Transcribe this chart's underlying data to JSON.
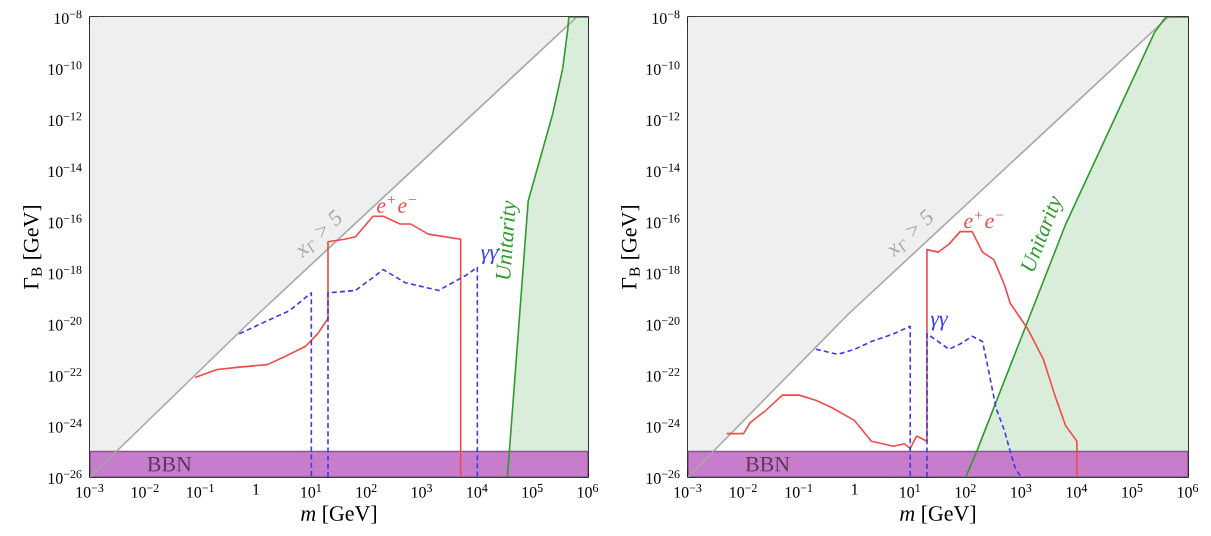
{
  "chart_data": [
    {
      "type": "line",
      "xlabel": "*m* [GeV]",
      "ylabel": "Γ$_{B}$ [GeV]",
      "log": "xy",
      "xlim": [
        0.001,
        1000000
      ],
      "ylim": [
        1e-26,
        1e-08
      ],
      "xticks": [
        {
          "value": 0.001,
          "label": "10$^{−3}$"
        },
        {
          "value": 0.01,
          "label": "10$^{−2}$"
        },
        {
          "value": 0.1,
          "label": "10$^{−1}$"
        },
        1,
        {
          "value": 10,
          "label": "10$^{1}$"
        },
        {
          "value": 100,
          "label": "10$^{2}$"
        },
        {
          "value": 1000,
          "label": "10$^{3}$"
        },
        {
          "value": 10000,
          "label": "10$^{4}$"
        },
        {
          "value": 100000,
          "label": "10$^{5}$"
        },
        {
          "value": 1000000,
          "label": "10$^{6}$"
        }
      ],
      "yticks": [
        {
          "value": 1e-26,
          "label": "10$^{−26}$"
        },
        {
          "value": 1e-24,
          "label": "10$^{−24}$"
        },
        {
          "value": 1e-22,
          "label": "10$^{−22}$"
        },
        {
          "value": 1e-20,
          "label": "10$^{−20}$"
        },
        {
          "value": 1e-18,
          "label": "10$^{−18}$"
        },
        {
          "value": 1e-16,
          "label": "10$^{−16}$"
        },
        {
          "value": 1e-14,
          "label": "10$^{−14}$"
        },
        {
          "value": 1e-12,
          "label": "10$^{−12}$"
        },
        {
          "value": 1e-10,
          "label": "10$^{−10}$"
        },
        {
          "value": 1e-08,
          "label": "10$^{−8}$"
        }
      ],
      "series": [
        {
          "name": "*x*$_{Γ}$ > 5",
          "color": "#a6a6a6",
          "x": [
            0.001,
            1,
            630000
          ],
          "values": [
            1e-26,
            2e-20,
            1e-08
          ],
          "lower": [
            1e-26,
            2e-20,
            1e-08
          ],
          "upper": [
            1e-08,
            1e-08,
            1e-08
          ]
        },
        {
          "name": "Unitarity",
          "color": "#2f9a2f",
          "x": [
            35000,
            83000,
            230000,
            350000,
            430000,
            450000,
            1000000
          ],
          "values": [
            1e-26,
            6.3e-16,
            1.6e-12,
            1e-10,
            3.2e-09,
            1e-08,
            1e-08
          ],
          "lower": [
            1e-26,
            1e-26,
            1e-26,
            1e-26,
            1e-26,
            1e-26,
            1e-26
          ],
          "upper": [
            1e-26,
            6.3e-16,
            1.6e-12,
            1e-10,
            3.2e-09,
            1e-08,
            1e-08
          ]
        },
        {
          "name": "e$^{+}$e$^{−}$",
          "color": "#f04a4a",
          "x": [
            0.079,
            0.2,
            0.5,
            1.6,
            3.2,
            7.9,
            13,
            20,
            20,
            40,
            63,
            130,
            200,
            400,
            630,
            1300,
            5000,
            5000
          ],
          "values": [
            7.9e-23,
            1.6e-22,
            2e-22,
            2.5e-22,
            5e-22,
            1.3e-21,
            4e-21,
            1.6e-20,
            1.6e-17,
            2e-17,
            2.5e-17,
            1.6e-16,
            1.6e-16,
            7.9e-17,
            7.9e-17,
            3.2e-17,
            2e-17,
            1e-26
          ]
        },
        {
          "name": "γγ",
          "color": "#3a3af0",
          "line_style": "dashed",
          "x": [
            0.5,
            1.6,
            4.0,
            10,
            10,
            null,
            20,
            20,
            63,
            200,
            500,
            2000,
            6300,
            10000,
            10000
          ],
          "values": [
            4e-21,
            1.3e-20,
            3.2e-20,
            1.6e-19,
            1e-26,
            null,
            1e-26,
            1.6e-19,
            2e-19,
            1.3e-18,
            4e-19,
            2e-19,
            7.9e-19,
            1.6e-18,
            1e-26
          ]
        }
      ],
      "bands": [
        {
          "axis": "y",
          "from": 1e-26,
          "to": 1e-25,
          "label": "BBN",
          "color": "#c77dcb"
        }
      ]
    },
    {
      "type": "line",
      "xlabel": "*m* [GeV]",
      "ylabel": "Γ$_{B}$ [GeV]",
      "log": "xy",
      "xlim": [
        0.001,
        1000000
      ],
      "ylim": [
        1e-26,
        1e-08
      ],
      "xticks": [
        {
          "value": 0.001,
          "label": "10$^{−3}$"
        },
        {
          "value": 0.01,
          "label": "10$^{−2}$"
        },
        {
          "value": 0.1,
          "label": "10$^{−1}$"
        },
        1,
        {
          "value": 10,
          "label": "10$^{1}$"
        },
        {
          "value": 100,
          "label": "10$^{2}$"
        },
        {
          "value": 1000,
          "label": "10$^{3}$"
        },
        {
          "value": 10000,
          "label": "10$^{4}$"
        },
        {
          "value": 100000,
          "label": "10$^{5}$"
        },
        {
          "value": 1000000,
          "label": "10$^{6}$"
        }
      ],
      "yticks": [
        {
          "value": 1e-26,
          "label": "10$^{−26}$"
        },
        {
          "value": 1e-24,
          "label": "10$^{−24}$"
        },
        {
          "value": 1e-22,
          "label": "10$^{−22}$"
        },
        {
          "value": 1e-20,
          "label": "10$^{−20}$"
        },
        {
          "value": 1e-18,
          "label": "10$^{−18}$"
        },
        {
          "value": 1e-16,
          "label": "10$^{−16}$"
        },
        {
          "value": 1e-14,
          "label": "10$^{−14}$"
        },
        {
          "value": 1e-12,
          "label": "10$^{−12}$"
        },
        {
          "value": 1e-10,
          "label": "10$^{−10}$"
        },
        {
          "value": 1e-08,
          "label": "10$^{−8}$"
        }
      ],
      "series": [
        {
          "name": "*x*$_{Γ}$ > 5",
          "color": "#a6a6a6",
          "x": [
            0.001,
            0.79,
            440000
          ],
          "values": [
            1e-26,
            2.5e-20,
            1e-08
          ],
          "lower": [
            1e-26,
            2.5e-20,
            1e-08
          ],
          "upper": [
            1e-08,
            1e-08,
            1e-08
          ]
        },
        {
          "name": "Unitarity",
          "color": "#2f9a2f",
          "x": [
            100,
            160,
            6300,
            250000,
            400000,
            1000000
          ],
          "values": [
            1e-26,
            1.1e-25,
            7.9e-17,
            2.5e-09,
            1e-08,
            1e-08
          ],
          "lower": [
            1e-26,
            1e-26,
            1e-26,
            1e-26,
            1e-26,
            1e-26
          ],
          "upper": [
            1e-26,
            1.1e-25,
            7.9e-17,
            2.5e-09,
            1e-08,
            1e-08
          ]
        },
        {
          "name": "e$^{+}$e$^{−}$",
          "color": "#f04a4a",
          "x": [
            0.005,
            0.01,
            0.013,
            0.025,
            0.05,
            0.1,
            0.2,
            0.4,
            1,
            2,
            5,
            7.9,
            10,
            13,
            20,
            20,
            32,
            50,
            79,
            130,
            200,
            320,
            500,
            630,
            1300,
            2500,
            4000,
            6300,
            10000,
            10000
          ],
          "values": [
            5e-25,
            5e-25,
            1.3e-24,
            4e-24,
            1.6e-23,
            1.6e-23,
            1e-23,
            5e-24,
            1.6e-24,
            2.5e-25,
            1.6e-25,
            2e-25,
            1.3e-25,
            4e-25,
            2.5e-25,
            7.9e-18,
            6.3e-18,
            1.3e-17,
            4e-17,
            4e-17,
            6.3e-18,
            3.2e-18,
            3.2e-19,
            6.3e-20,
            6.3e-21,
            4e-22,
            1.6e-23,
            1e-24,
            2.5e-25,
            1e-26
          ]
        },
        {
          "name": "γγ",
          "color": "#3a3af0",
          "line_style": "dashed",
          "x": [
            0.2,
            0.5,
            1,
            2,
            5,
            10,
            10,
            null,
            20,
            20,
            32,
            50,
            79,
            130,
            200,
            250,
            350,
            500,
            630,
            790,
            1000
          ],
          "values": [
            1e-21,
            6.3e-22,
            1e-21,
            2e-21,
            4e-21,
            7.9e-21,
            1e-26,
            null,
            1e-26,
            4e-21,
            2e-21,
            1e-21,
            1.6e-21,
            3.2e-21,
            2e-21,
            2e-22,
            5e-24,
            6.3e-25,
            1e-25,
            2e-26,
            1e-26
          ]
        }
      ],
      "bands": [
        {
          "axis": "y",
          "from": 1e-26,
          "to": 1e-25,
          "label": "BBN",
          "color": "#c77dcb"
        }
      ]
    }
  ]
}
